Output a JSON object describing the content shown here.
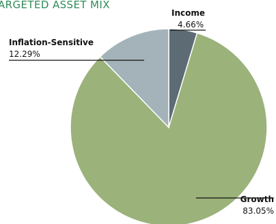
{
  "colors": {
    "title": "#2e8b57",
    "growth": "#9bb27a",
    "inflation_sensitive": "#a3b3b9",
    "income": "#5d6b75",
    "slice_border": "#ffffff",
    "leader": "#111111"
  },
  "chart_data": {
    "type": "pie",
    "title": "ARGETED ASSET MIX",
    "slices": [
      {
        "name": "Income",
        "value": 4.66,
        "label": "4.66%",
        "color": "#5d6b75"
      },
      {
        "name": "Growth",
        "value": 83.05,
        "label": "83.05%",
        "color": "#9bb27a"
      },
      {
        "name": "Inflation-Sensitive",
        "value": 12.29,
        "label": "12.29%",
        "color": "#a3b3b9"
      }
    ],
    "start_at": "top",
    "direction": "clockwise"
  }
}
